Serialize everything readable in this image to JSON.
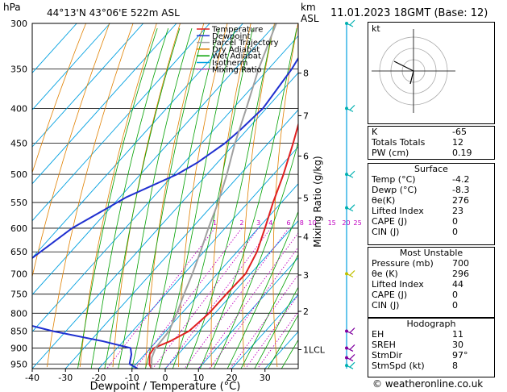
{
  "header": {
    "pressure_unit": "hPa",
    "location": "44°13'N  43°06'E  522m  ASL",
    "height_unit_top": "km",
    "height_unit_bottom": "ASL",
    "datetime": "11.01.2023 18GMT (Base: 12)"
  },
  "legend": {
    "items": [
      {
        "label": "Temperature",
        "color": "#e02020",
        "style": "solid"
      },
      {
        "label": "Dewpoint",
        "color": "#2030d0",
        "style": "solid"
      },
      {
        "label": "Parcel Trajectory",
        "color": "#a0a0a0",
        "style": "solid"
      },
      {
        "label": "Dry Adiabat",
        "color": "#e08000",
        "style": "solid"
      },
      {
        "label": "Wet Adiabat",
        "color": "#00a000",
        "style": "solid"
      },
      {
        "label": "Isotherm",
        "color": "#00a0e0",
        "style": "solid"
      },
      {
        "label": "Mixing Ratio",
        "color": "#c000c0",
        "style": "dotted"
      }
    ]
  },
  "chart_data": {
    "type": "line",
    "xlabel": "Dewpoint / Temperature (°C)",
    "ylabel_right": "Mixing Ratio (g/kg)",
    "x_ticks": [
      -40,
      -30,
      -20,
      -10,
      0,
      10,
      20,
      30
    ],
    "pressure_levels": [
      300,
      350,
      400,
      450,
      500,
      550,
      600,
      650,
      700,
      750,
      800,
      850,
      900,
      950
    ],
    "km_labels": [
      {
        "p": 355,
        "label": "8"
      },
      {
        "p": 410,
        "label": "7"
      },
      {
        "p": 470,
        "label": "6"
      },
      {
        "p": 542,
        "label": "5"
      },
      {
        "p": 618,
        "label": "4"
      },
      {
        "p": 703,
        "label": "3"
      },
      {
        "p": 795,
        "label": "2"
      },
      {
        "p": 905,
        "label": "1LCL"
      }
    ],
    "mixing_ratio_labels": [
      "1",
      "2",
      "3",
      "4",
      "6",
      "8",
      "10",
      "15",
      "20",
      "25"
    ],
    "mixing_ratio_values": [
      1,
      2,
      3,
      4,
      6,
      8,
      10,
      15,
      20,
      25
    ],
    "series": [
      {
        "name": "Temperature",
        "color": "#e02020",
        "points": [
          [
            300,
            -43
          ],
          [
            350,
            -36
          ],
          [
            400,
            -29
          ],
          [
            450,
            -22.5
          ],
          [
            500,
            -17
          ],
          [
            550,
            -12.5
          ],
          [
            600,
            -8
          ],
          [
            650,
            -4
          ],
          [
            700,
            -1.5
          ],
          [
            750,
            -1.8
          ],
          [
            800,
            -1.8
          ],
          [
            850,
            -3
          ],
          [
            880,
            -6
          ],
          [
            900,
            -9
          ],
          [
            920,
            -8.5
          ],
          [
            950,
            -6
          ],
          [
            965,
            -4.2
          ]
        ]
      },
      {
        "name": "Dewpoint",
        "color": "#2030d0",
        "points": [
          [
            300,
            -47
          ],
          [
            350,
            -43
          ],
          [
            400,
            -41
          ],
          [
            430,
            -42
          ],
          [
            450,
            -43
          ],
          [
            480,
            -46
          ],
          [
            500,
            -49
          ],
          [
            540,
            -58
          ],
          [
            600,
            -66
          ],
          [
            700,
            -72
          ],
          [
            800,
            -70
          ],
          [
            850,
            -44
          ],
          [
            880,
            -26
          ],
          [
            900,
            -16
          ],
          [
            920,
            -14
          ],
          [
            950,
            -12
          ],
          [
            965,
            -8.3
          ]
        ]
      },
      {
        "name": "Parcel Trajectory",
        "color": "#a0a0a0",
        "points": [
          [
            300,
            -60
          ],
          [
            350,
            -53
          ],
          [
            400,
            -46
          ],
          [
            450,
            -40
          ],
          [
            500,
            -34
          ],
          [
            550,
            -29
          ],
          [
            600,
            -25
          ],
          [
            650,
            -21
          ],
          [
            700,
            -17.5
          ],
          [
            750,
            -14.5
          ],
          [
            800,
            -11.5
          ],
          [
            850,
            -9
          ],
          [
            900,
            -8.5
          ],
          [
            930,
            -7
          ],
          [
            965,
            -4.2
          ]
        ]
      }
    ],
    "wind_barbs_colors": [
      "#00b0b0",
      "#00b0b0",
      "#00b0b0",
      "#00b0b0",
      "#c0c000",
      "#8000a0",
      "#8000a0",
      "#8000a0",
      "#00b0b0"
    ]
  },
  "indices": {
    "k_label": "K",
    "k": "-65",
    "tt_label": "Totals Totals",
    "tt": "12",
    "pw_label": "PW (cm)",
    "pw": "0.19"
  },
  "surface": {
    "title": "Surface",
    "rows": [
      {
        "k": "Temp (°C)",
        "v": "-4.2"
      },
      {
        "k": "Dewp (°C)",
        "v": "-8.3"
      },
      {
        "k": "θe(K)",
        "v": "276"
      },
      {
        "k": "Lifted Index",
        "v": "23"
      },
      {
        "k": "CAPE (J)",
        "v": "0"
      },
      {
        "k": "CIN (J)",
        "v": "0"
      }
    ]
  },
  "most_unstable": {
    "title": "Most Unstable",
    "rows": [
      {
        "k": "Pressure (mb)",
        "v": "700"
      },
      {
        "k": "θe (K)",
        "v": "296"
      },
      {
        "k": "Lifted Index",
        "v": "44"
      },
      {
        "k": "CAPE (J)",
        "v": "0"
      },
      {
        "k": "CIN (J)",
        "v": "0"
      }
    ]
  },
  "hodograph": {
    "title": "Hodograph",
    "label": "kt",
    "rows": [
      {
        "k": "EH",
        "v": "11"
      },
      {
        "k": "SREH",
        "v": "30"
      },
      {
        "k": "StmDir",
        "v": "97°"
      },
      {
        "k": "StmSpd (kt)",
        "v": "8"
      }
    ]
  },
  "footer": {
    "copyright": "© weatheronline.co.uk"
  }
}
